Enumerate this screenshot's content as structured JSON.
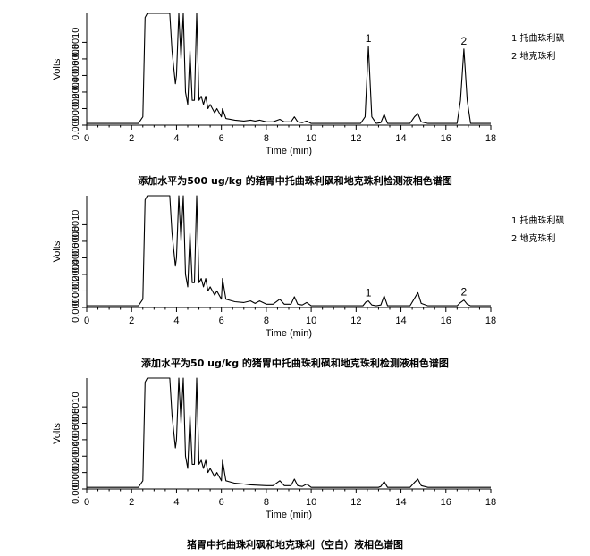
{
  "chart_data": [
    {
      "type": "line",
      "title": "添加水平为500 ug/kg 的猪胃中托曲珠利砜和地克珠利检测液相色谱图",
      "xlabel": "Time (min)",
      "ylabel": "Volts",
      "xlim": [
        0,
        18
      ],
      "x_ticks": [
        "0",
        "2",
        "4",
        "6",
        "8",
        "10",
        "12",
        "14",
        "16",
        "18"
      ],
      "y_tick_labels": [
        "0.0000",
        "0.0002",
        "0.0004",
        "0.0006",
        "0.0008",
        "0.0010"
      ],
      "ylim": [
        0,
        0.00135
      ],
      "legend": [
        "1  托曲珠利砜",
        "2  地克珠利"
      ],
      "legend_position": "top-right",
      "peaks": [
        {
          "label": "1",
          "x": 12.55,
          "height": 0.00095
        },
        {
          "label": "2",
          "x": 16.8,
          "height": 0.00092
        }
      ],
      "trace": [
        [
          0,
          2e-05
        ],
        [
          2.3,
          2e-05
        ],
        [
          2.5,
          0.0001
        ],
        [
          2.6,
          0.0013
        ],
        [
          2.7,
          0.00135
        ],
        [
          3.7,
          0.00135
        ],
        [
          3.8,
          0.0009
        ],
        [
          3.95,
          0.0005
        ],
        [
          4.0,
          0.0006
        ],
        [
          4.1,
          0.00135
        ],
        [
          4.2,
          0.0008
        ],
        [
          4.3,
          0.00135
        ],
        [
          4.4,
          0.0004
        ],
        [
          4.5,
          0.00025
        ],
        [
          4.6,
          0.0009
        ],
        [
          4.7,
          0.0003
        ],
        [
          4.8,
          0.0003
        ],
        [
          4.9,
          0.00135
        ],
        [
          5.0,
          0.0003
        ],
        [
          5.1,
          0.00035
        ],
        [
          5.2,
          0.00025
        ],
        [
          5.3,
          0.00035
        ],
        [
          5.4,
          0.0002
        ],
        [
          5.5,
          0.00025
        ],
        [
          5.7,
          0.00015
        ],
        [
          5.8,
          0.0002
        ],
        [
          6.0,
          0.0001
        ],
        [
          6.05,
          0.0002
        ],
        [
          6.2,
          8e-05
        ],
        [
          6.6,
          6e-05
        ],
        [
          7.0,
          5e-05
        ],
        [
          7.3,
          6e-05
        ],
        [
          7.5,
          5e-05
        ],
        [
          7.7,
          6e-05
        ],
        [
          8.0,
          4e-05
        ],
        [
          8.3,
          4e-05
        ],
        [
          8.6,
          7e-05
        ],
        [
          8.8,
          4e-05
        ],
        [
          9.1,
          4e-05
        ],
        [
          9.25,
          0.0001
        ],
        [
          9.4,
          4e-05
        ],
        [
          9.6,
          3e-05
        ],
        [
          9.8,
          5e-05
        ],
        [
          10.0,
          2e-05
        ],
        [
          12.2,
          2e-05
        ],
        [
          12.4,
          0.0001
        ],
        [
          12.55,
          0.00095
        ],
        [
          12.7,
          0.0001
        ],
        [
          12.9,
          2e-05
        ],
        [
          13.1,
          3e-05
        ],
        [
          13.25,
          0.00013
        ],
        [
          13.4,
          2e-05
        ],
        [
          14.4,
          2e-05
        ],
        [
          14.6,
          0.0001
        ],
        [
          14.75,
          0.00014
        ],
        [
          14.9,
          4e-05
        ],
        [
          15.2,
          2e-05
        ],
        [
          16.5,
          2e-05
        ],
        [
          16.65,
          0.0003
        ],
        [
          16.8,
          0.00092
        ],
        [
          16.95,
          0.0003
        ],
        [
          17.1,
          2e-05
        ],
        [
          18,
          2e-05
        ]
      ]
    },
    {
      "type": "line",
      "title": "添加水平为50 ug/kg 的猪胃中托曲珠利砜和地克珠利检测液相色谱图",
      "xlabel": "Time (min)",
      "ylabel": "Volts",
      "xlim": [
        0,
        18
      ],
      "x_ticks": [
        "0",
        "2",
        "4",
        "6",
        "8",
        "10",
        "12",
        "14",
        "16",
        "18"
      ],
      "y_tick_labels": [
        "0.0000",
        "0.0002",
        "0.0004",
        "0.0006",
        "0.0008",
        "0.0010"
      ],
      "ylim": [
        0,
        0.00135
      ],
      "legend": [
        "1  托曲珠利砜",
        "2  地克珠利"
      ],
      "legend_position": "top-right",
      "peaks": [
        {
          "label": "1",
          "x": 12.55,
          "height": 8e-05
        },
        {
          "label": "2",
          "x": 16.8,
          "height": 9e-05
        }
      ],
      "trace": [
        [
          0,
          2e-05
        ],
        [
          2.3,
          2e-05
        ],
        [
          2.5,
          0.0001
        ],
        [
          2.6,
          0.0013
        ],
        [
          2.7,
          0.00135
        ],
        [
          3.7,
          0.00135
        ],
        [
          3.8,
          0.0009
        ],
        [
          3.95,
          0.0005
        ],
        [
          4.0,
          0.0006
        ],
        [
          4.1,
          0.00135
        ],
        [
          4.2,
          0.0008
        ],
        [
          4.3,
          0.00135
        ],
        [
          4.4,
          0.0004
        ],
        [
          4.5,
          0.00025
        ],
        [
          4.6,
          0.0009
        ],
        [
          4.7,
          0.0003
        ],
        [
          4.8,
          0.0003
        ],
        [
          4.9,
          0.00135
        ],
        [
          5.0,
          0.0003
        ],
        [
          5.1,
          0.00035
        ],
        [
          5.2,
          0.00025
        ],
        [
          5.3,
          0.00035
        ],
        [
          5.4,
          0.0002
        ],
        [
          5.5,
          0.00025
        ],
        [
          5.7,
          0.00015
        ],
        [
          5.8,
          0.0002
        ],
        [
          6.0,
          0.0001
        ],
        [
          6.05,
          0.00035
        ],
        [
          6.2,
          0.0001
        ],
        [
          6.6,
          7e-05
        ],
        [
          7.0,
          6e-05
        ],
        [
          7.3,
          8e-05
        ],
        [
          7.5,
          5e-05
        ],
        [
          7.7,
          8e-05
        ],
        [
          8.0,
          4e-05
        ],
        [
          8.3,
          4e-05
        ],
        [
          8.6,
          0.0001
        ],
        [
          8.8,
          4e-05
        ],
        [
          9.1,
          4e-05
        ],
        [
          9.25,
          0.00013
        ],
        [
          9.4,
          4e-05
        ],
        [
          9.6,
          3e-05
        ],
        [
          9.8,
          6e-05
        ],
        [
          10.0,
          2e-05
        ],
        [
          12.3,
          2e-05
        ],
        [
          12.45,
          7e-05
        ],
        [
          12.55,
          8e-05
        ],
        [
          12.7,
          3e-05
        ],
        [
          12.9,
          2e-05
        ],
        [
          13.1,
          3e-05
        ],
        [
          13.25,
          0.00014
        ],
        [
          13.4,
          2e-05
        ],
        [
          14.4,
          2e-05
        ],
        [
          14.6,
          0.00011
        ],
        [
          14.75,
          0.00018
        ],
        [
          14.9,
          5e-05
        ],
        [
          15.2,
          2e-05
        ],
        [
          16.5,
          2e-05
        ],
        [
          16.65,
          6e-05
        ],
        [
          16.8,
          9e-05
        ],
        [
          16.95,
          4e-05
        ],
        [
          17.1,
          2e-05
        ],
        [
          18,
          2e-05
        ]
      ]
    },
    {
      "type": "line",
      "title": "猪胃中托曲珠利砜和地克珠利（空白）液相色谱图",
      "xlabel": "Time (min)",
      "ylabel": "Volts",
      "xlim": [
        0,
        18
      ],
      "x_ticks": [
        "0",
        "2",
        "4",
        "6",
        "8",
        "10",
        "12",
        "14",
        "16",
        "18"
      ],
      "y_tick_labels": [
        "0.0000",
        "0.0002",
        "0.0004",
        "0.0006",
        "0.0008",
        "0.0010"
      ],
      "ylim": [
        0,
        0.00135
      ],
      "legend": [],
      "peaks": [],
      "trace": [
        [
          0,
          2e-05
        ],
        [
          2.3,
          2e-05
        ],
        [
          2.5,
          0.0001
        ],
        [
          2.6,
          0.0013
        ],
        [
          2.7,
          0.00135
        ],
        [
          3.7,
          0.00135
        ],
        [
          3.8,
          0.0009
        ],
        [
          3.95,
          0.0005
        ],
        [
          4.0,
          0.0006
        ],
        [
          4.1,
          0.00135
        ],
        [
          4.2,
          0.0008
        ],
        [
          4.3,
          0.00135
        ],
        [
          4.4,
          0.0004
        ],
        [
          4.5,
          0.00025
        ],
        [
          4.6,
          0.0009
        ],
        [
          4.7,
          0.0003
        ],
        [
          4.8,
          0.0003
        ],
        [
          4.9,
          0.00135
        ],
        [
          5.0,
          0.0003
        ],
        [
          5.1,
          0.00035
        ],
        [
          5.2,
          0.00025
        ],
        [
          5.3,
          0.00035
        ],
        [
          5.4,
          0.0002
        ],
        [
          5.5,
          0.00025
        ],
        [
          5.7,
          0.00015
        ],
        [
          5.8,
          0.0002
        ],
        [
          6.0,
          0.0001
        ],
        [
          6.05,
          0.00035
        ],
        [
          6.2,
          0.0001
        ],
        [
          6.6,
          7e-05
        ],
        [
          7.0,
          6e-05
        ],
        [
          7.3,
          5e-05
        ],
        [
          8.0,
          4e-05
        ],
        [
          8.3,
          4e-05
        ],
        [
          8.6,
          0.0001
        ],
        [
          8.8,
          4e-05
        ],
        [
          9.1,
          4e-05
        ],
        [
          9.25,
          0.00012
        ],
        [
          9.4,
          4e-05
        ],
        [
          9.6,
          3e-05
        ],
        [
          9.8,
          6e-05
        ],
        [
          10.0,
          2e-05
        ],
        [
          13.0,
          2e-05
        ],
        [
          13.1,
          3e-05
        ],
        [
          13.25,
          9e-05
        ],
        [
          13.4,
          2e-05
        ],
        [
          14.4,
          2e-05
        ],
        [
          14.6,
          8e-05
        ],
        [
          14.75,
          0.00012
        ],
        [
          14.9,
          4e-05
        ],
        [
          15.2,
          2e-05
        ],
        [
          18,
          2e-05
        ]
      ]
    }
  ]
}
